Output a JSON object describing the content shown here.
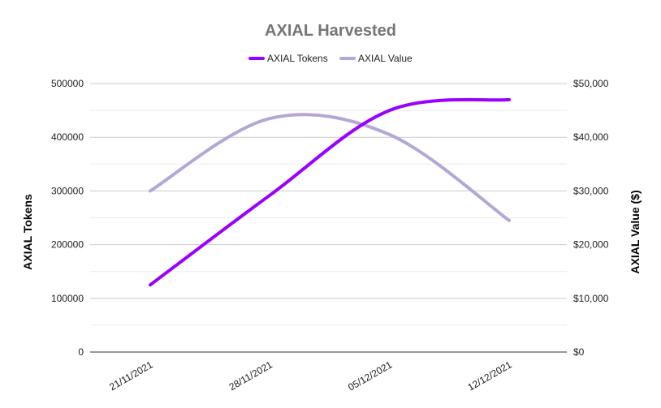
{
  "chart_data": {
    "type": "line",
    "title": "AXIAL Harvested",
    "x": [
      "21/11/2021",
      "28/11/2021",
      "05/12/2021",
      "12/12/2021"
    ],
    "series": [
      {
        "name": "AXIAL Tokens",
        "axis": "left",
        "color": "#9900ff",
        "values": [
          125000,
          292000,
          450000,
          470000
        ]
      },
      {
        "name": "AXIAL Value",
        "axis": "right",
        "color": "#b4a7d6",
        "values": [
          30000,
          43500,
          40500,
          24500
        ]
      }
    ],
    "y_left": {
      "label": "AXIAL Tokens",
      "ylim": [
        0,
        500000
      ],
      "ticks": [
        "0",
        "100000",
        "200000",
        "300000",
        "400000",
        "500000"
      ]
    },
    "y_right": {
      "label": "AXIAL Value ($)",
      "ylim": [
        0,
        50000
      ],
      "ticks": [
        "$0",
        "$10,000",
        "$20,000",
        "$30,000",
        "$40,000",
        "$50,000"
      ]
    },
    "grid": true,
    "smooth": true,
    "legend_position": "top"
  }
}
